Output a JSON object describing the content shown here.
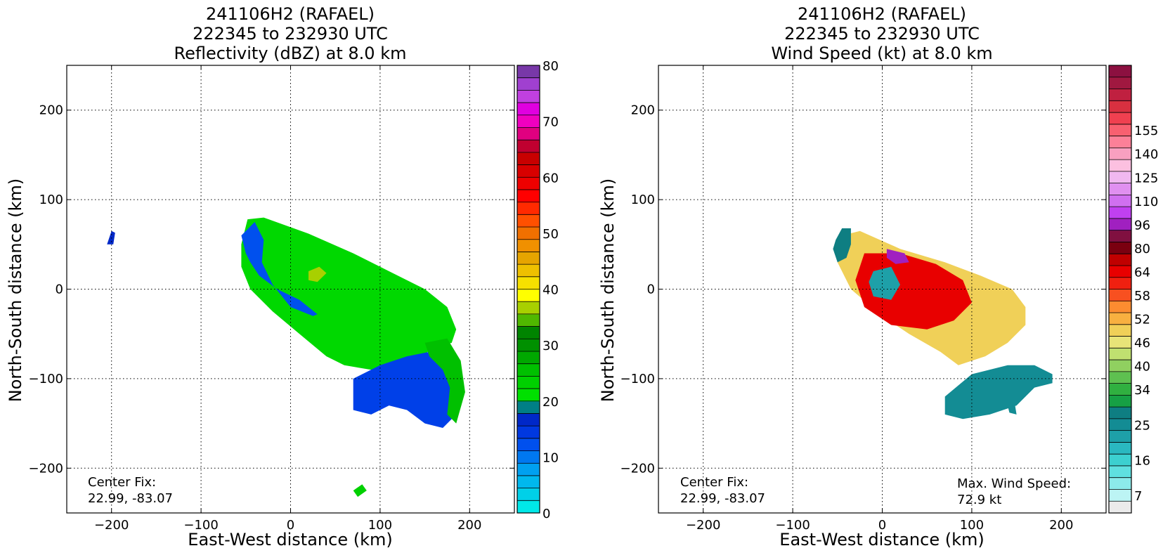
{
  "panels": [
    {
      "title_lines": [
        "241106H2 (RAFAEL)",
        "222345 to 232930 UTC",
        "Reflectivity (dBZ) at 8.0 km"
      ],
      "xlabel": "East-West distance (km)",
      "ylabel": "North-South distance (km)",
      "center_fix_label": "Center Fix:",
      "center_fix_value": "22.99, -83.07",
      "max_wind_label": "",
      "max_wind_value": ""
    },
    {
      "title_lines": [
        "241106H2 (RAFAEL)",
        "222345 to 232930 UTC",
        "Wind Speed (kt) at 8.0 km"
      ],
      "xlabel": "East-West distance (km)",
      "ylabel": "North-South distance (km)",
      "center_fix_label": "Center Fix:",
      "center_fix_value": "22.99, -83.07",
      "max_wind_label": "Max. Wind Speed:",
      "max_wind_value": "72.9 kt"
    }
  ],
  "chart_data": [
    {
      "type": "heatmap",
      "title": "241106H2 (RAFAEL) 222345 to 232930 UTC Reflectivity (dBZ) at 8.0 km",
      "xlabel": "East-West distance (km)",
      "ylabel": "North-South distance (km)",
      "xlim": [
        -250,
        250
      ],
      "ylim": [
        -250,
        250
      ],
      "xticks": [
        -200,
        -100,
        0,
        100,
        200
      ],
      "yticks": [
        -200,
        -100,
        0,
        100,
        200
      ],
      "xtick_labels": [
        "−200",
        "−100",
        "0",
        "100",
        "200"
      ],
      "ytick_labels": [
        "−200",
        "−100",
        "0",
        "100",
        "200"
      ],
      "grid": true,
      "colorbar": {
        "min": 0,
        "max": 80,
        "step": 2.5,
        "tick_values": [
          0,
          10,
          20,
          30,
          40,
          50,
          60,
          70,
          80
        ],
        "tick_labels": [
          "0",
          "10",
          "20",
          "30",
          "40",
          "50",
          "60",
          "70",
          "80"
        ],
        "colors": [
          "#00e8e8",
          "#00d0e8",
          "#00b8ee",
          "#00a0f0",
          "#0078f0",
          "#0050ee",
          "#0038e0",
          "#0028c8",
          "#007f86",
          "#00e000",
          "#00d000",
          "#00c000",
          "#00a800",
          "#009000",
          "#008400",
          "#50b800",
          "#a8d000",
          "#ffff00",
          "#f6e000",
          "#eec000",
          "#e6a400",
          "#f09000",
          "#f07000",
          "#ff5000",
          "#ff2a00",
          "#ff0000",
          "#ee0000",
          "#d80000",
          "#c80000",
          "#c00030",
          "#e00080",
          "#f000c0",
          "#e000e0",
          "#c040e0",
          "#a040d0",
          "#7838a8"
        ]
      },
      "regions": [
        {
          "name": "main band",
          "color": "#00d800",
          "outline": [
            [
              -48,
              78
            ],
            [
              -30,
              80
            ],
            [
              20,
              62
            ],
            [
              70,
              40
            ],
            [
              110,
              20
            ],
            [
              150,
              0
            ],
            [
              175,
              -20
            ],
            [
              185,
              -45
            ],
            [
              180,
              -60
            ],
            [
              160,
              -65
            ],
            [
              140,
              -80
            ],
            [
              110,
              -85
            ],
            [
              90,
              -90
            ],
            [
              60,
              -85
            ],
            [
              40,
              -75
            ],
            [
              10,
              -50
            ],
            [
              -20,
              -25
            ],
            [
              -45,
              0
            ],
            [
              -55,
              25
            ],
            [
              -55,
              50
            ]
          ]
        },
        {
          "name": "western edge",
          "color": "#0050ee",
          "outline": [
            [
              -55,
              60
            ],
            [
              -40,
              75
            ],
            [
              -30,
              55
            ],
            [
              -32,
              30
            ],
            [
              -20,
              5
            ],
            [
              0,
              -20
            ],
            [
              25,
              -30
            ],
            [
              30,
              -28
            ],
            [
              10,
              -12
            ],
            [
              -15,
              0
            ],
            [
              -35,
              15
            ],
            [
              -45,
              30
            ],
            [
              -50,
              40
            ]
          ]
        },
        {
          "name": "southern band",
          "color": "#0040e8",
          "outline": [
            [
              70,
              -100
            ],
            [
              100,
              -85
            ],
            [
              130,
              -75
            ],
            [
              155,
              -70
            ],
            [
              175,
              -60
            ],
            [
              185,
              -80
            ],
            [
              190,
              -110
            ],
            [
              185,
              -140
            ],
            [
              170,
              -155
            ],
            [
              150,
              -150
            ],
            [
              130,
              -135
            ],
            [
              110,
              -130
            ],
            [
              90,
              -140
            ],
            [
              70,
              -135
            ],
            [
              70,
              -120
            ]
          ]
        },
        {
          "name": "southern green",
          "color": "#00c000",
          "outline": [
            [
              150,
              -60
            ],
            [
              175,
              -55
            ],
            [
              190,
              -80
            ],
            [
              195,
              -115
            ],
            [
              185,
              -150
            ],
            [
              175,
              -140
            ],
            [
              178,
              -110
            ],
            [
              170,
              -90
            ],
            [
              155,
              -75
            ]
          ]
        },
        {
          "name": "core",
          "color": "#a8d000",
          "outline": [
            [
              20,
              20
            ],
            [
              32,
              25
            ],
            [
              40,
              18
            ],
            [
              30,
              8
            ],
            [
              20,
              10
            ]
          ]
        },
        {
          "name": "isolated cell west",
          "color": "#0028c8",
          "outline": [
            [
              -205,
              50
            ],
            [
              -200,
              65
            ],
            [
              -196,
              63
            ],
            [
              -198,
              50
            ]
          ]
        },
        {
          "name": "isolated cell south",
          "color": "#00d000",
          "outline": [
            [
              70,
              -225
            ],
            [
              80,
              -218
            ],
            [
              85,
              -225
            ],
            [
              75,
              -232
            ]
          ]
        }
      ]
    },
    {
      "type": "heatmap",
      "title": "241106H2 (RAFAEL) 222345 to 232930 UTC Wind Speed (kt) at 8.0 km",
      "xlabel": "East-West distance (km)",
      "ylabel": "North-South distance (km)",
      "xlim": [
        -250,
        250
      ],
      "ylim": [
        -250,
        250
      ],
      "xticks": [
        -200,
        -100,
        0,
        100,
        200
      ],
      "yticks": [
        -200,
        -100,
        0,
        100,
        200
      ],
      "xtick_labels": [
        "−200",
        "−100",
        "0",
        "100",
        "200"
      ],
      "ytick_labels": [
        "−200",
        "−100",
        "0",
        "100",
        "200"
      ],
      "grid": true,
      "max_wind_speed_kt": 72.9,
      "colorbar": {
        "tick_labels": [
          "7",
          "16",
          "25",
          "34",
          "40",
          "46",
          "52",
          "58",
          "64",
          "80",
          "96",
          "110",
          "125",
          "140",
          "155"
        ],
        "label_bins": [
          1,
          4,
          7,
          10,
          12,
          14,
          16,
          18,
          20,
          22,
          24,
          26,
          28,
          30,
          32
        ],
        "colors": [
          "#ebebeb",
          "#bcf4f4",
          "#8ceaea",
          "#5fe0e0",
          "#3cd0d0",
          "#2ab8c0",
          "#1ea0a8",
          "#138c94",
          "#0e7e82",
          "#16a044",
          "#30b040",
          "#5ec050",
          "#90d060",
          "#c0e070",
          "#e8e478",
          "#f0d058",
          "#f8b040",
          "#fc8c30",
          "#f85020",
          "#f02010",
          "#e80000",
          "#c00000",
          "#7a0010",
          "#801040",
          "#a020c0",
          "#c040f0",
          "#d070f0",
          "#e090f0",
          "#f0b8f0",
          "#fcc0e0",
          "#f8a0c0",
          "#fc8098",
          "#f86070",
          "#f04050",
          "#d83040",
          "#c02040",
          "#a01840",
          "#8c1040"
        ]
      },
      "regions": [
        {
          "name": "main band",
          "color": "#f0d058",
          "outline": [
            [
              -45,
              60
            ],
            [
              -25,
              65
            ],
            [
              20,
              45
            ],
            [
              70,
              30
            ],
            [
              110,
              15
            ],
            [
              145,
              0
            ],
            [
              160,
              -20
            ],
            [
              160,
              -40
            ],
            [
              140,
              -60
            ],
            [
              115,
              -75
            ],
            [
              85,
              -85
            ],
            [
              65,
              -70
            ],
            [
              30,
              -50
            ],
            [
              0,
              -30
            ],
            [
              -35,
              0
            ],
            [
              -50,
              30
            ]
          ]
        },
        {
          "name": "western edge",
          "color": "#0e7e82",
          "outline": [
            [
              -52,
              55
            ],
            [
              -45,
              68
            ],
            [
              -35,
              68
            ],
            [
              -35,
              50
            ],
            [
              -40,
              35
            ],
            [
              -50,
              30
            ],
            [
              -55,
              45
            ]
          ]
        },
        {
          "name": "eyewall",
          "color": "#e80000",
          "outline": [
            [
              -20,
              40
            ],
            [
              20,
              40
            ],
            [
              60,
              28
            ],
            [
              90,
              10
            ],
            [
              100,
              -15
            ],
            [
              80,
              -35
            ],
            [
              50,
              -45
            ],
            [
              10,
              -40
            ],
            [
              -20,
              -20
            ],
            [
              -30,
              10
            ]
          ]
        },
        {
          "name": "eye",
          "color": "#1ea0a8",
          "outline": [
            [
              -10,
              20
            ],
            [
              10,
              25
            ],
            [
              20,
              5
            ],
            [
              10,
              -12
            ],
            [
              -10,
              -8
            ],
            [
              -15,
              8
            ]
          ]
        },
        {
          "name": "purple pocket",
          "color": "#a020c0",
          "outline": [
            [
              5,
              45
            ],
            [
              25,
              40
            ],
            [
              30,
              30
            ],
            [
              15,
              28
            ],
            [
              5,
              35
            ]
          ]
        },
        {
          "name": "southern band",
          "color": "#138c94",
          "outline": [
            [
              70,
              -120
            ],
            [
              100,
              -95
            ],
            [
              140,
              -85
            ],
            [
              170,
              -85
            ],
            [
              190,
              -95
            ],
            [
              190,
              -105
            ],
            [
              170,
              -110
            ],
            [
              150,
              -130
            ],
            [
              120,
              -140
            ],
            [
              90,
              -145
            ],
            [
              70,
              -140
            ]
          ]
        },
        {
          "name": "isolated cell south",
          "color": "#138c94",
          "outline": [
            [
              140,
              -130
            ],
            [
              148,
              -128
            ],
            [
              150,
              -140
            ],
            [
              142,
              -138
            ]
          ]
        }
      ]
    }
  ]
}
